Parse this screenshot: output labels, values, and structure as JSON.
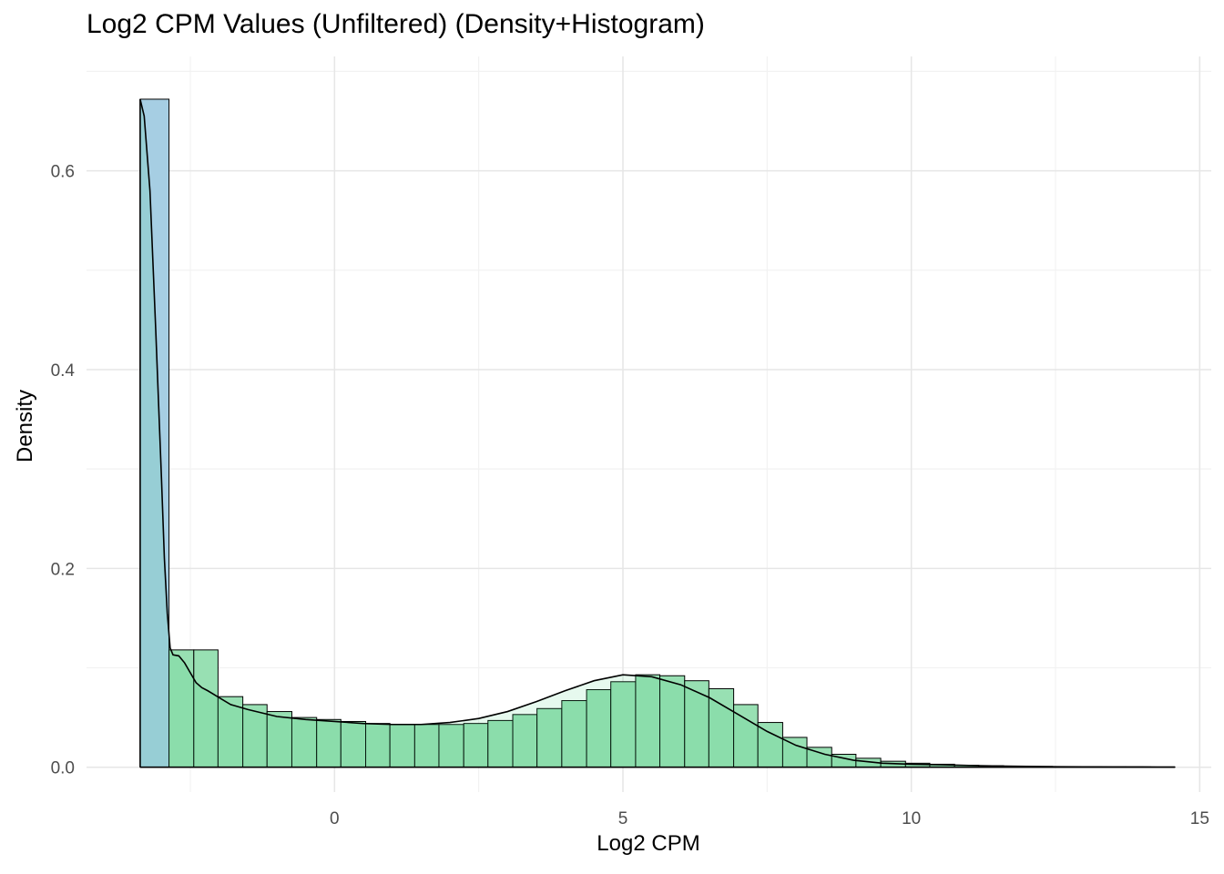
{
  "chart_data": {
    "type": "histogram+density",
    "title": "Log2 CPM Values (Unfiltered) (Density+Histogram)",
    "xlabel": "Log2 CPM",
    "ylabel": "Density",
    "xlim": [
      -4.3,
      15.2
    ],
    "ylim": [
      -0.025,
      0.715
    ],
    "x_ticks": [
      0,
      5,
      10,
      15
    ],
    "x_tick_labels": [
      "0",
      "5",
      "10",
      "15"
    ],
    "y_ticks": [
      0.0,
      0.2,
      0.4,
      0.6
    ],
    "y_tick_labels": [
      "0.0",
      "0.2",
      "0.4",
      "0.6"
    ],
    "grid": true,
    "histogram": {
      "fill_first_bin": "#a6cee3",
      "fill": "#98e0b3",
      "outline": "#000000",
      "bin_edges": [
        -3.37,
        -2.87,
        -2.44,
        -2.02,
        -1.59,
        -1.17,
        -0.74,
        -0.31,
        0.11,
        0.54,
        0.96,
        1.39,
        1.81,
        2.24,
        2.66,
        3.09,
        3.51,
        3.94,
        4.37,
        4.79,
        5.22,
        5.64,
        6.07,
        6.49,
        6.92,
        7.34,
        7.77,
        8.19,
        8.62,
        9.04,
        9.47,
        9.9,
        10.32,
        10.75,
        11.17,
        11.6,
        12.02,
        12.45,
        12.87,
        13.3,
        13.72,
        14.15,
        14.57
      ],
      "densities": [
        0.672,
        0.118,
        0.118,
        0.071,
        0.063,
        0.056,
        0.05,
        0.048,
        0.046,
        0.044,
        0.043,
        0.043,
        0.043,
        0.044,
        0.047,
        0.053,
        0.059,
        0.067,
        0.078,
        0.086,
        0.093,
        0.092,
        0.087,
        0.079,
        0.063,
        0.045,
        0.03,
        0.02,
        0.013,
        0.009,
        0.006,
        0.004,
        0.003,
        0.002,
        0.0015,
        0.001,
        0.0008,
        0.0006,
        0.0005,
        0.0004,
        0.0003,
        0.0002
      ]
    },
    "density": {
      "color": "#000000",
      "x": [
        -3.37,
        -3.3,
        -3.2,
        -3.1,
        -3.0,
        -2.95,
        -2.9,
        -2.85,
        -2.8,
        -2.7,
        -2.6,
        -2.5,
        -2.4,
        -2.3,
        -2.2,
        -2.0,
        -1.8,
        -1.5,
        -1.0,
        -0.5,
        0.0,
        0.5,
        1.0,
        1.5,
        2.0,
        2.5,
        3.0,
        3.5,
        4.0,
        4.5,
        5.0,
        5.5,
        6.0,
        6.5,
        7.0,
        7.5,
        8.0,
        8.5,
        9.0,
        9.5,
        10.0,
        10.5,
        11.0,
        11.5,
        12.0,
        12.5,
        13.0,
        13.5,
        14.0,
        14.57
      ],
      "y": [
        0.672,
        0.655,
        0.58,
        0.44,
        0.29,
        0.21,
        0.155,
        0.12,
        0.113,
        0.112,
        0.105,
        0.095,
        0.085,
        0.08,
        0.077,
        0.07,
        0.063,
        0.058,
        0.051,
        0.048,
        0.046,
        0.044,
        0.043,
        0.043,
        0.045,
        0.049,
        0.056,
        0.066,
        0.077,
        0.087,
        0.093,
        0.091,
        0.083,
        0.07,
        0.053,
        0.036,
        0.022,
        0.013,
        0.007,
        0.004,
        0.003,
        0.0025,
        0.0018,
        0.0012,
        0.0008,
        0.0005,
        0.0004,
        0.0003,
        0.0002,
        0.0001
      ]
    }
  }
}
